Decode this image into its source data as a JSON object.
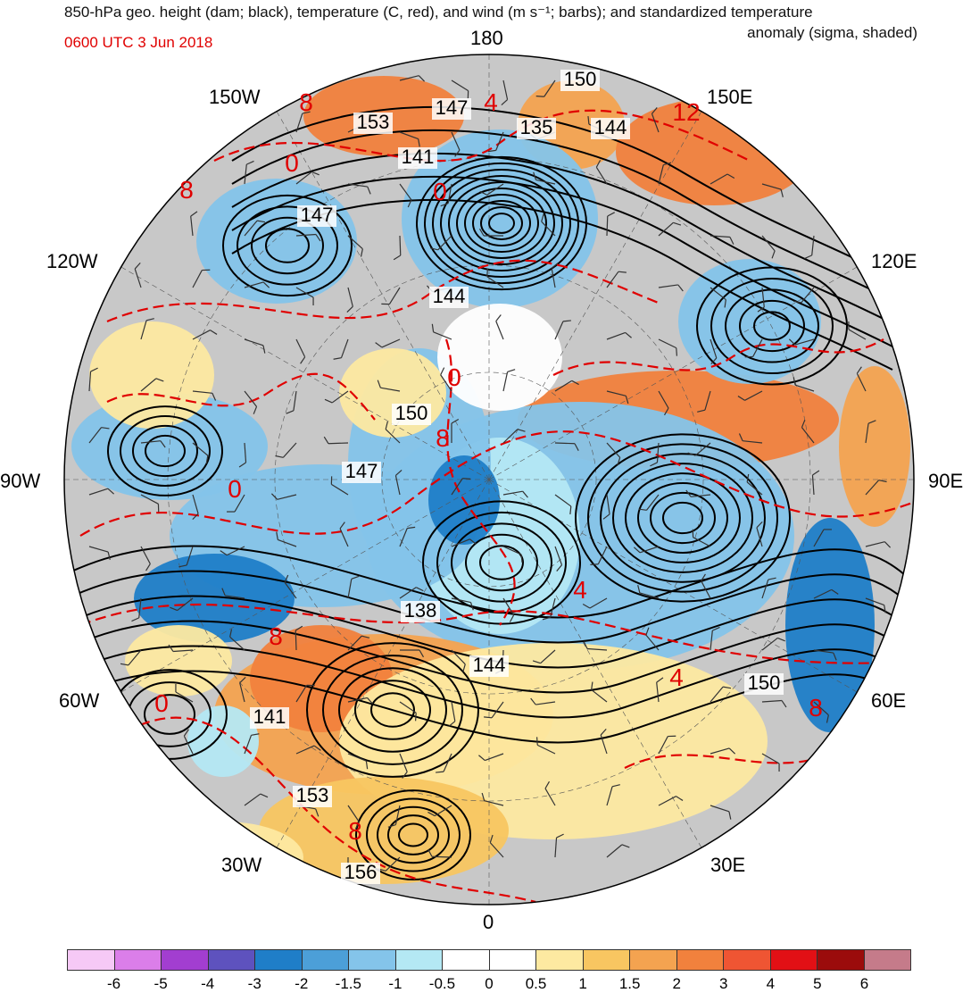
{
  "header": {
    "title_line1": "850-hPa geo. height (dam; black), temperature (C, red), and wind (m s⁻¹; barbs); and standardized temperature",
    "title_line2": "anomaly (sigma, shaded)",
    "timestamp": "0600 UTC 3 Jun 2018"
  },
  "longitude_labels": {
    "n180": "180",
    "w150": "150W",
    "e150": "150E",
    "w120": "120W",
    "e120": "120E",
    "w90": "90W",
    "e90": "90E",
    "w60": "60W",
    "e60": "60E",
    "w30": "30W",
    "e30": "30E",
    "s0": "0"
  },
  "height_labels": [
    "150",
    "153",
    "147",
    "135",
    "144",
    "141",
    "147",
    "144",
    "150",
    "147",
    "138",
    "144",
    "150",
    "141",
    "153",
    "156"
  ],
  "temperature_labels": [
    "8",
    "4",
    "12",
    "0",
    "0",
    "8",
    "0",
    "8",
    "0",
    "8",
    "4",
    "4",
    "8",
    "0",
    "8"
  ],
  "colorbar": {
    "ticks": [
      "-6",
      "-5",
      "-4",
      "-3",
      "-2",
      "-1.5",
      "-1",
      "-0.5",
      "0",
      "0.5",
      "1",
      "1.5",
      "2",
      "3",
      "4",
      "5",
      "6"
    ],
    "colors": [
      "#f6c9f6",
      "#db7ee9",
      "#a23ed0",
      "#5e52be",
      "#1f7ec8",
      "#4c9fd8",
      "#84c4ea",
      "#b4e8f4",
      "#ffffff",
      "#ffffff",
      "#fde9a1",
      "#f8c661",
      "#f4a350",
      "#f1813d",
      "#ef5533",
      "#e21015",
      "#9b0c0c",
      "#c57b8a"
    ]
  },
  "map_colors": {
    "land_gray": "#c8c8c8",
    "height_contour": "#000000",
    "temperature_contour": "#e00000"
  }
}
